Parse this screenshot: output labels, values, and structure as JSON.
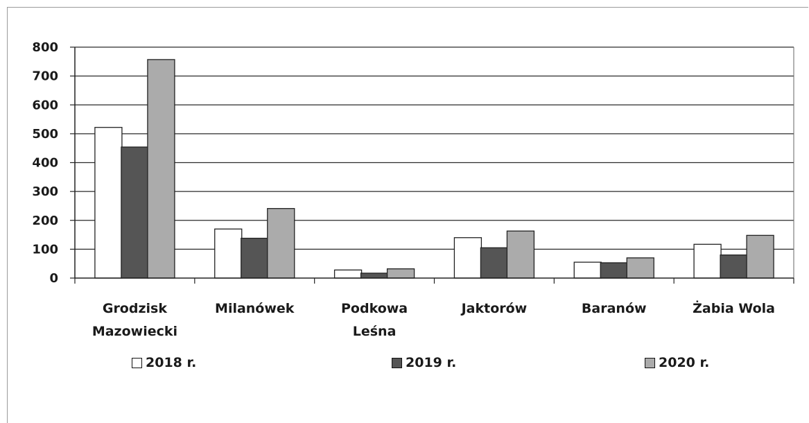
{
  "chart_data": {
    "type": "bar",
    "categories": [
      [
        "Grodzisk",
        "Mazowiecki"
      ],
      [
        "Milanówek"
      ],
      [
        "Podkowa",
        "Leśna"
      ],
      [
        "Jaktorów"
      ],
      [
        "Baranów"
      ],
      [
        "Żabia Wola"
      ]
    ],
    "series": [
      {
        "name": "2018 r.",
        "values": [
          522,
          170,
          28,
          140,
          55,
          117
        ],
        "color": "#ffffff"
      },
      {
        "name": "2019 r.",
        "values": [
          454,
          138,
          17,
          105,
          53,
          80
        ],
        "color": "#555555"
      },
      {
        "name": "2020 r.",
        "values": [
          757,
          241,
          32,
          163,
          70,
          148
        ],
        "color": "#ababab"
      }
    ],
    "yticks": [
      0,
      100,
      200,
      300,
      400,
      500,
      600,
      700,
      800
    ],
    "ylim": [
      0,
      800
    ],
    "grid": true,
    "legend_position": "bottom"
  }
}
